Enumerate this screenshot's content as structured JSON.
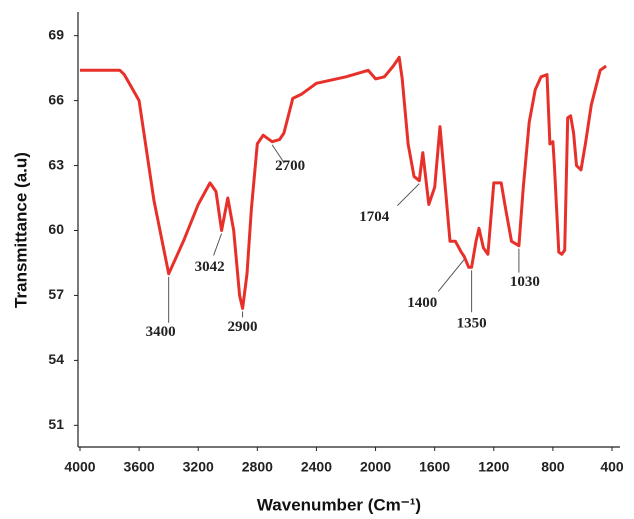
{
  "chart_data": {
    "type": "line",
    "x_label": "Wavenumber (Cm⁻¹)",
    "y_label": "Transmittance (a.u)",
    "xlim": [
      4000,
      400
    ],
    "ylim": [
      50,
      70
    ],
    "xticks": [
      4000,
      3600,
      3200,
      2800,
      2400,
      2000,
      1600,
      1200,
      800,
      400
    ],
    "yticks": [
      51,
      54,
      57,
      60,
      63,
      66,
      69
    ],
    "series": [
      {
        "color": "#e8302a",
        "x": [
          4000,
          3730,
          3700,
          3600,
          3500,
          3400,
          3300,
          3200,
          3120,
          3080,
          3042,
          3000,
          2960,
          2920,
          2900,
          2870,
          2840,
          2800,
          2760,
          2700,
          2650,
          2620,
          2560,
          2500,
          2400,
          2200,
          2050,
          2000,
          1940,
          1880,
          1840,
          1820,
          1780,
          1740,
          1704,
          1680,
          1640,
          1600,
          1564,
          1496,
          1460,
          1420,
          1400,
          1370,
          1350,
          1320,
          1300,
          1270,
          1240,
          1200,
          1150,
          1120,
          1080,
          1030,
          1000,
          960,
          920,
          880,
          840,
          820,
          800,
          790,
          760,
          740,
          720,
          700,
          680,
          660,
          640,
          610,
          580,
          540,
          480,
          440
        ],
        "values": [
          67.4,
          67.4,
          67.2,
          66.0,
          61.4,
          58.0,
          59.5,
          61.2,
          62.2,
          61.8,
          60.0,
          61.5,
          60.0,
          57.0,
          56.4,
          58.0,
          61.0,
          64.0,
          64.4,
          64.1,
          64.2,
          64.5,
          66.1,
          66.3,
          66.8,
          67.1,
          67.4,
          67.0,
          67.1,
          67.6,
          68.0,
          67.0,
          64.0,
          62.5,
          62.3,
          63.6,
          61.2,
          62.0,
          64.8,
          59.5,
          59.5,
          59.0,
          58.8,
          58.3,
          58.3,
          59.5,
          60.1,
          59.2,
          58.9,
          62.2,
          62.2,
          61.0,
          59.5,
          59.3,
          62.0,
          65.0,
          66.5,
          67.1,
          67.2,
          64.0,
          64.1,
          63.0,
          59.0,
          58.9,
          59.1,
          65.2,
          65.3,
          64.5,
          63.0,
          62.8,
          64.0,
          65.8,
          67.4,
          67.6
        ]
      }
    ],
    "annotations": [
      {
        "label": "3400",
        "x": 3400
      },
      {
        "label": "3042",
        "x": 3042
      },
      {
        "label": "2900",
        "x": 2900
      },
      {
        "label": "2700",
        "x": 2700
      },
      {
        "label": "1704",
        "x": 1704
      },
      {
        "label": "1400",
        "x": 1400
      },
      {
        "label": "1350",
        "x": 1350
      },
      {
        "label": "1030",
        "x": 1030
      }
    ]
  }
}
